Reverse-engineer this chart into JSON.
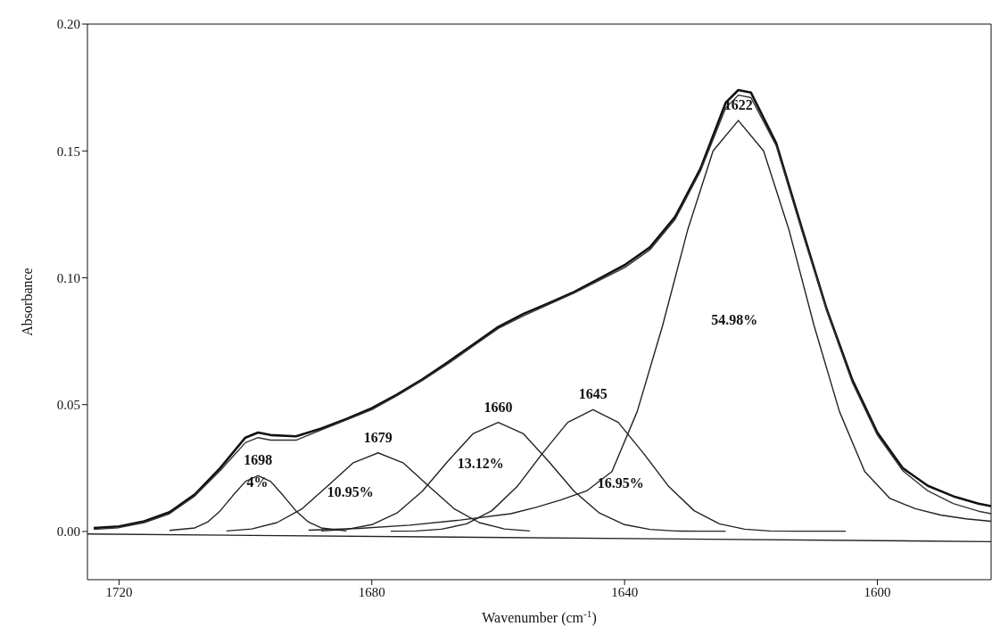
{
  "chart_data": {
    "type": "line",
    "xlabel": "Wavenumber (cm$^{-1}$)",
    "ylabel": "Absorbance",
    "xlim": [
      1725,
      1582
    ],
    "ylim": [
      -0.019,
      0.2
    ],
    "xticks": [
      1720,
      1680,
      1640,
      1600
    ],
    "yticks": [
      {
        "value": 0,
        "label": "0.00"
      },
      {
        "value": 0.05,
        "label": "0.05"
      },
      {
        "value": 0.1,
        "label": "0.10"
      },
      {
        "value": 0.15,
        "label": "0.15"
      },
      {
        "value": 0.2,
        "label": "0.20"
      }
    ],
    "grid": false,
    "legend": false,
    "marker": "none",
    "line_style": "solid",
    "series": [
      {
        "color": "#111111",
        "x": [
          1724,
          1720,
          1716,
          1712,
          1708,
          1704,
          1700,
          1698,
          1696,
          1692,
          1688,
          1684,
          1680,
          1676,
          1672,
          1668,
          1664,
          1660,
          1656,
          1652,
          1648,
          1644,
          1640,
          1636,
          1632,
          1628,
          1624,
          1622,
          1620,
          1616,
          1612,
          1608,
          1604,
          1600,
          1596,
          1592,
          1588,
          1584,
          1582
        ],
        "values": [
          0.0014,
          0.002,
          0.004,
          0.0076,
          0.0146,
          0.025,
          0.037,
          0.039,
          0.038,
          0.0375,
          0.0406,
          0.0444,
          0.0486,
          0.054,
          0.06,
          0.0667,
          0.0736,
          0.0806,
          0.0858,
          0.09,
          0.0944,
          0.0997,
          0.105,
          0.112,
          0.124,
          0.143,
          0.169,
          0.174,
          0.173,
          0.153,
          0.12,
          0.0875,
          0.06,
          0.039,
          0.025,
          0.018,
          0.0139,
          0.011,
          0.01
        ]
      },
      {
        "color": "#333333",
        "x": [
          1724,
          1720,
          1716,
          1712,
          1708,
          1704,
          1700,
          1698,
          1696,
          1692,
          1688,
          1684,
          1680,
          1676,
          1672,
          1668,
          1664,
          1660,
          1656,
          1652,
          1648,
          1644,
          1640,
          1636,
          1632,
          1628,
          1624,
          1622,
          1620,
          1616,
          1612,
          1608,
          1604,
          1600,
          1596,
          1592,
          1588,
          1584,
          1582
        ],
        "values": [
          0.0008,
          0.0015,
          0.0035,
          0.007,
          0.014,
          0.024,
          0.035,
          0.037,
          0.036,
          0.036,
          0.04,
          0.044,
          0.048,
          0.0535,
          0.0595,
          0.066,
          0.073,
          0.08,
          0.085,
          0.0895,
          0.094,
          0.099,
          0.104,
          0.111,
          0.123,
          0.142,
          0.167,
          0.172,
          0.171,
          0.152,
          0.119,
          0.087,
          0.059,
          0.038,
          0.024,
          0.016,
          0.011,
          0.008,
          0.007
        ]
      },
      {
        "color": "#222222",
        "x": [
          1712,
          1708,
          1706,
          1704,
          1702,
          1700,
          1698,
          1696,
          1694,
          1692,
          1690,
          1688,
          1684
        ],
        "values": [
          0.0004,
          0.0014,
          0.0037,
          0.0081,
          0.0141,
          0.0197,
          0.022,
          0.0197,
          0.0141,
          0.0081,
          0.0037,
          0.0014,
          0.0002
        ]
      },
      {
        "color": "#222222",
        "x": [
          1703,
          1699,
          1695,
          1691,
          1687,
          1683,
          1679,
          1675,
          1671,
          1667,
          1663,
          1659,
          1655
        ],
        "values": [
          0.0002,
          0.001,
          0.0035,
          0.009,
          0.0179,
          0.027,
          0.031,
          0.027,
          0.0179,
          0.009,
          0.0035,
          0.001,
          0.0002
        ]
      },
      {
        "color": "#222222",
        "x": [
          1688,
          1684,
          1680,
          1676,
          1672,
          1668,
          1664,
          1660,
          1656,
          1652,
          1648,
          1644,
          1640,
          1636,
          1632,
          1628,
          1624
        ],
        "values": [
          0.0002,
          0.0008,
          0.0027,
          0.0073,
          0.0159,
          0.0276,
          0.0385,
          0.043,
          0.0385,
          0.0276,
          0.0159,
          0.0073,
          0.0027,
          0.0008,
          0.0002,
          0.0001,
          0.0001
        ]
      },
      {
        "color": "#222222",
        "x": [
          1677,
          1673,
          1669,
          1665,
          1661,
          1657,
          1653,
          1649,
          1645,
          1641,
          1637,
          1633,
          1629,
          1625,
          1621,
          1617,
          1613,
          1609,
          1605
        ],
        "values": [
          0.0001,
          0.0002,
          0.0009,
          0.003,
          0.0082,
          0.0177,
          0.0308,
          0.043,
          0.048,
          0.043,
          0.0308,
          0.0177,
          0.0082,
          0.003,
          0.0009,
          0.0002,
          0.0001,
          0.0001,
          0.0001
        ]
      },
      {
        "color": "#222222",
        "x": [
          1690,
          1682,
          1674,
          1666,
          1658,
          1654,
          1650,
          1646,
          1642,
          1638,
          1634,
          1630,
          1626,
          1622,
          1618,
          1614,
          1610,
          1606,
          1602,
          1598,
          1594,
          1590,
          1586,
          1582
        ],
        "values": [
          0.0005,
          0.0012,
          0.0025,
          0.0045,
          0.007,
          0.0095,
          0.0125,
          0.016,
          0.0236,
          0.0473,
          0.081,
          0.119,
          0.15,
          0.162,
          0.15,
          0.119,
          0.081,
          0.0473,
          0.0236,
          0.013,
          0.009,
          0.0065,
          0.005,
          0.004
        ]
      },
      {
        "color": "#222222",
        "x": [
          1725,
          1582
        ],
        "values": [
          -0.001,
          -0.004
        ]
      }
    ],
    "annotations": [
      {
        "text": "1698",
        "x": 1698,
        "y": 0.022
      },
      {
        "text": "1679",
        "x": 1679,
        "y": 0.031
      },
      {
        "text": "1660",
        "x": 1660,
        "y": 0.043
      },
      {
        "text": "1645",
        "x": 1645,
        "y": 0.048
      },
      {
        "text": "1622",
        "x": 1622,
        "y": 0.162
      },
      "4%",
      "10.95%",
      "13.12%",
      "16.95%",
      "54.98%"
    ]
  }
}
